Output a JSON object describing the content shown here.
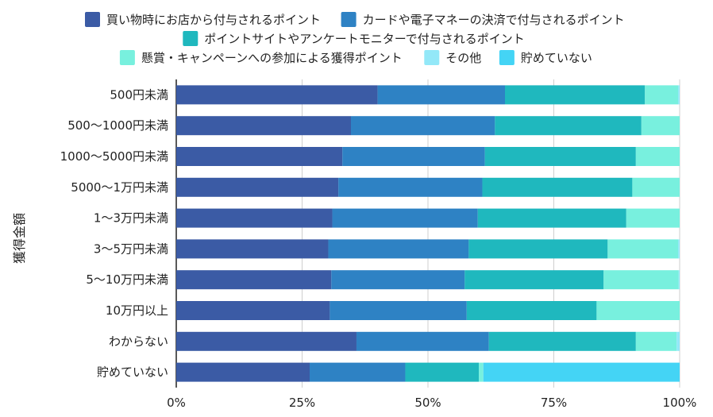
{
  "chart_data": {
    "type": "bar",
    "orientation": "horizontal",
    "stacked": true,
    "normalized": true,
    "title": "",
    "ylabel": "獲得金額",
    "xlabel": "",
    "xlim": [
      0,
      100
    ],
    "x_ticks": [
      "0%",
      "25%",
      "50%",
      "75%",
      "100%"
    ],
    "grid": true,
    "legend_position": "top",
    "categories": [
      "500円未満",
      "500〜1000円未満",
      "1000〜5000円未満",
      "5000〜1万円未満",
      "1〜3万円未満",
      "3〜5万円未満",
      "5〜10万円未満",
      "10万円以上",
      "わからない",
      "貯めていない"
    ],
    "series": [
      {
        "name": "買い物時にお店から付与されるポイント",
        "color": "#3B5BA5",
        "values": [
          40.0,
          34.7,
          33.0,
          32.2,
          31.0,
          30.2,
          30.8,
          30.5,
          35.8,
          26.5
        ]
      },
      {
        "name": "カードや電子マネーの決済で付与されるポイント",
        "color": "#2E82C4",
        "values": [
          25.3,
          28.6,
          28.3,
          28.6,
          28.9,
          27.9,
          26.5,
          27.2,
          26.3,
          19.0
        ]
      },
      {
        "name": "ポイントサイトやアンケートモニターで付与されるポイント",
        "color": "#1FB8BE",
        "values": [
          27.8,
          29.1,
          30.0,
          29.8,
          29.5,
          27.6,
          27.6,
          25.8,
          29.2,
          14.6
        ]
      },
      {
        "name": "懸賞・キャンペーンへの参加による獲得ポイント",
        "color": "#78F0DE",
        "values": [
          6.6,
          7.6,
          8.7,
          9.4,
          10.6,
          14.0,
          14.9,
          16.5,
          8.1,
          0.9
        ]
      },
      {
        "name": "その他",
        "color": "#93E8F8",
        "values": [
          0.3,
          0.0,
          0.0,
          0.0,
          0.0,
          0.3,
          0.2,
          0.0,
          0.6,
          0.0
        ]
      },
      {
        "name": "貯めていない",
        "color": "#44D4F5",
        "values": [
          0.0,
          0.0,
          0.0,
          0.0,
          0.0,
          0.0,
          0.0,
          0.0,
          0.0,
          39.0
        ]
      }
    ]
  }
}
